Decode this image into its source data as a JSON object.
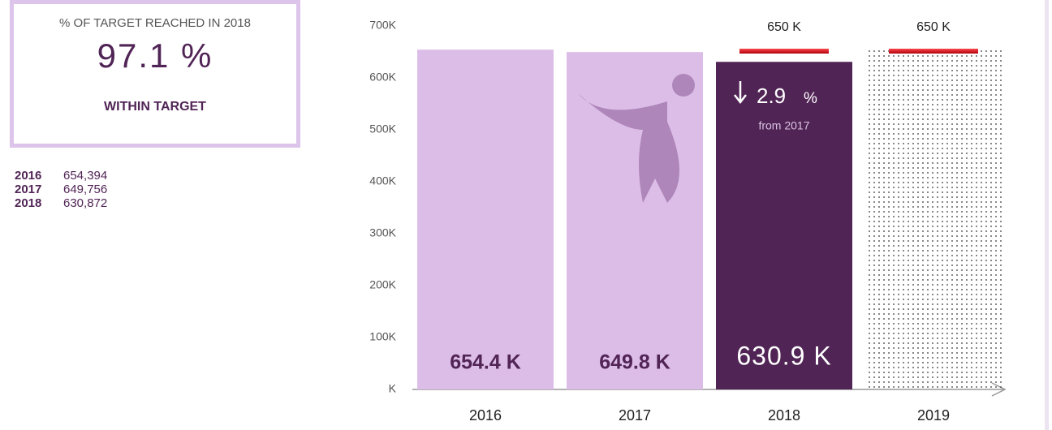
{
  "kpi": {
    "title": "% OF TARGET REACHED IN 2018",
    "value": "97.1 %",
    "status": "WITHIN TARGET"
  },
  "summary": {
    "rows": [
      [
        "2016",
        "654,394"
      ],
      [
        "2017",
        "649,756"
      ],
      [
        "2018",
        "630,872"
      ]
    ]
  },
  "chart_data": {
    "type": "bar",
    "categories": [
      "2016",
      "2017",
      "2018",
      "2019"
    ],
    "values": [
      654394,
      649756,
      630872,
      null
    ],
    "value_labels": [
      "654.4 K",
      "649.8 K",
      "630.9 K",
      null
    ],
    "bar_colors": [
      "#dcbde8",
      "#dcbde8",
      "#512456",
      null
    ],
    "targets": [
      null,
      null,
      650000,
      650000
    ],
    "target_labels": [
      null,
      null,
      "650 K",
      "650 K"
    ],
    "target_color": "#e8141c",
    "ylim": [
      0,
      700000
    ],
    "yticks": [
      {
        "value": 0,
        "label": "K"
      },
      {
        "value": 100000,
        "label": "100K"
      },
      {
        "value": 200000,
        "label": "200K"
      },
      {
        "value": 300000,
        "label": "300K"
      },
      {
        "value": 400000,
        "label": "400K"
      },
      {
        "value": 500000,
        "label": "500K"
      },
      {
        "value": 600000,
        "label": "600K"
      },
      {
        "value": 700000,
        "label": "700K"
      }
    ],
    "grid": false,
    "annotation": {
      "change": "2.9",
      "change_unit": "%",
      "note": "from 2017"
    }
  }
}
